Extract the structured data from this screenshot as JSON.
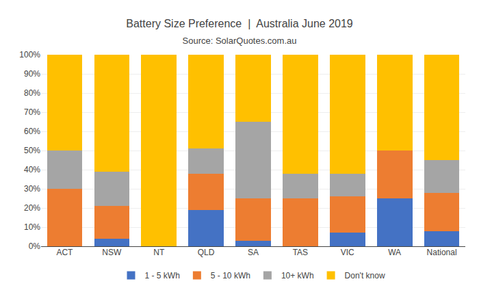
{
  "chart_data": {
    "type": "bar",
    "title": "Battery Size Preference  |  Australia June 2019",
    "subtitle": "Source: SolarQuotes.com.au",
    "categories": [
      "ACT",
      "NSW",
      "NT",
      "QLD",
      "SA",
      "TAS",
      "VIC",
      "WA",
      "National"
    ],
    "series": [
      {
        "name": "1 - 5 kWh",
        "color": "#4472C4",
        "values": [
          0,
          4,
          0,
          19,
          3,
          0,
          7,
          25,
          8
        ]
      },
      {
        "name": "5 - 10 kWh",
        "color": "#ED7D31",
        "values": [
          30,
          17,
          0,
          19,
          22,
          25,
          19,
          25,
          20
        ]
      },
      {
        "name": "10+ kWh",
        "color": "#A5A5A5",
        "values": [
          20,
          18,
          0,
          13,
          40,
          13,
          12,
          0,
          17
        ]
      },
      {
        "name": "Don't know",
        "color": "#FFC000",
        "values": [
          50,
          61,
          100,
          49,
          35,
          62,
          62,
          50,
          55
        ]
      }
    ],
    "stacked": true,
    "ylim": [
      0,
      100
    ],
    "yticks": [
      {
        "value": 0,
        "label": "0%"
      },
      {
        "value": 10,
        "label": "10%"
      },
      {
        "value": 20,
        "label": "20%"
      },
      {
        "value": 30,
        "label": "30%"
      },
      {
        "value": 40,
        "label": "40%"
      },
      {
        "value": 50,
        "label": "50%"
      },
      {
        "value": 60,
        "label": "60%"
      },
      {
        "value": 70,
        "label": "70%"
      },
      {
        "value": 80,
        "label": "80%"
      },
      {
        "value": 90,
        "label": "90%"
      },
      {
        "value": 100,
        "label": "100%"
      }
    ],
    "grid": true,
    "legend": "bottom"
  }
}
